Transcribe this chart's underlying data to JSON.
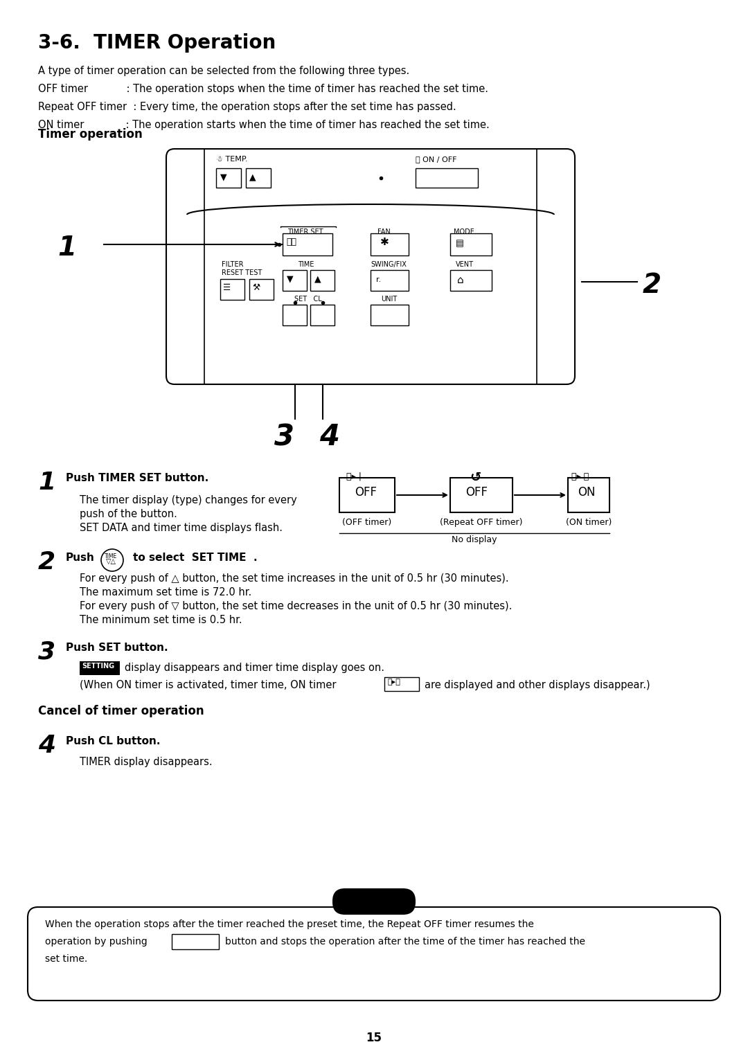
{
  "title": "3-6.  TIMER Operation",
  "bg_color": "#ffffff",
  "page_number": "15",
  "intro_lines": [
    "A type of timer operation can be selected from the following three types.",
    "OFF timer            : The operation stops when the time of timer has reached the set time.",
    "Repeat OFF timer  : Every time, the operation stops after the set time has passed.",
    "ON timer             : The operation starts when the time of timer has reached the set time."
  ],
  "section1_title": "Timer operation",
  "section2_title": "Cancel of timer operation",
  "step1_head": "Push TIMER SET button.",
  "step1_body": [
    "The timer display (type) changes for every",
    "push of the button.",
    "SET DATA and timer time displays flash."
  ],
  "step2_head": "to select  SET TIME  .",
  "step2_body": [
    "For every push of △ button, the set time increases in the unit of 0.5 hr (30 minutes).",
    "The maximum set time is 72.0 hr.",
    "For every push of ▽ button, the set time decreases in the unit of 0.5 hr (30 minutes).",
    "The minimum set time is 0.5 hr."
  ],
  "step3_head": "Push SET button.",
  "step3_body1": "display disappears and timer time display goes on.",
  "step3_body2": "(When ON timer is activated, timer time, ON timer",
  "step3_body3": "are displayed and other displays disappear.)",
  "step4_head": "Push CL button.",
  "step4_body": "TIMER display disappears.",
  "note_line1": "When the operation stops after the timer reached the preset time, the Repeat OFF timer resumes the",
  "note_line2": "operation by pushing",
  "note_line2b": "button and stops the operation after the time of the timer has reached the",
  "note_line3": "set time."
}
